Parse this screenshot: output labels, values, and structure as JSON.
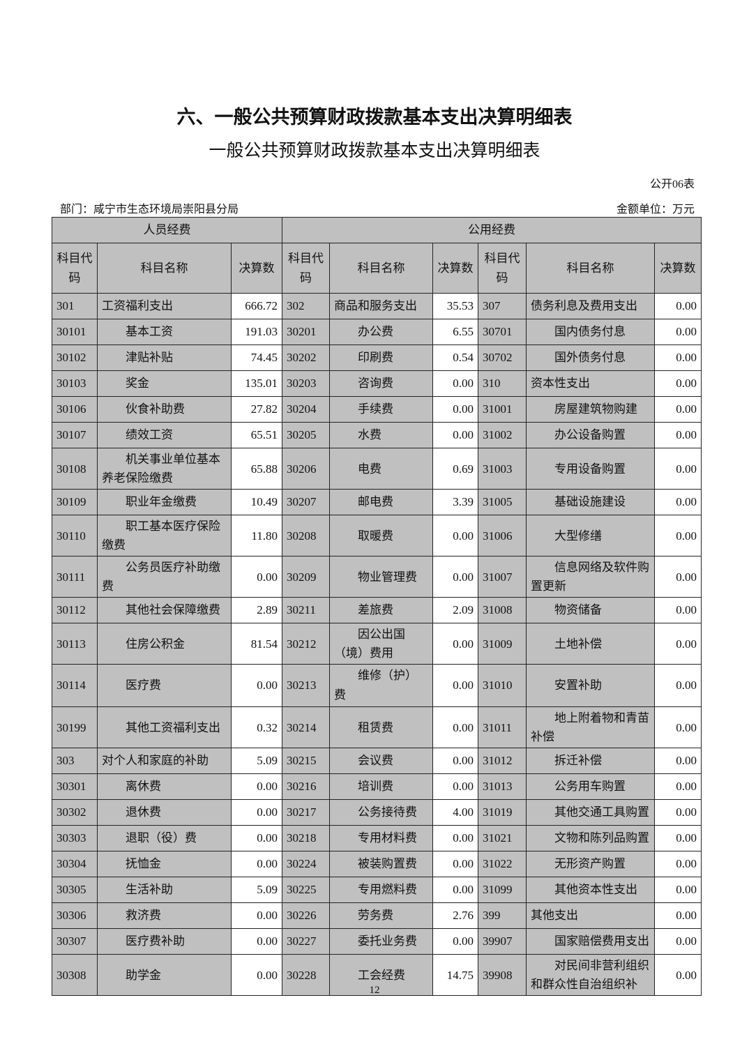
{
  "title": "六、一般公共预算财政拨款基本支出决算明细表",
  "subtitle": "一般公共预算财政拨款基本支出决算明细表",
  "table_no": "公开06表",
  "department": "部门：咸宁市生态环境局崇阳县分局",
  "unit": "金额单位：万元",
  "header": {
    "group1": "人员经费",
    "group2": "公用经费",
    "code": "科目代码",
    "name": "科目名称",
    "amount1": "决算数",
    "amount": "决算数"
  },
  "rows": [
    [
      "301",
      "工资福利支出",
      "666.72",
      "302",
      "商品和服务支出",
      "35.53",
      "307",
      "债务利息及费用支出",
      "0.00"
    ],
    [
      "30101",
      "基本工资",
      "191.03",
      "30201",
      "办公费",
      "6.55",
      "30701",
      "国内债务付息",
      "0.00"
    ],
    [
      "30102",
      "津贴补贴",
      "74.45",
      "30202",
      "印刷费",
      "0.54",
      "30702",
      "国外债务付息",
      "0.00"
    ],
    [
      "30103",
      "奖金",
      "135.01",
      "30203",
      "咨询费",
      "0.00",
      "310",
      "资本性支出",
      "0.00"
    ],
    [
      "30106",
      "伙食补助费",
      "27.82",
      "30204",
      "手续费",
      "0.00",
      "31001",
      "房屋建筑物购建",
      "0.00"
    ],
    [
      "30107",
      "绩效工资",
      "65.51",
      "30205",
      "水费",
      "0.00",
      "31002",
      "办公设备购置",
      "0.00"
    ],
    [
      "30108",
      "机关事业单位基本养老保险缴费",
      "65.88",
      "30206",
      "电费",
      "0.69",
      "31003",
      "专用设备购置",
      "0.00"
    ],
    [
      "30109",
      "职业年金缴费",
      "10.49",
      "30207",
      "邮电费",
      "3.39",
      "31005",
      "基础设施建设",
      "0.00"
    ],
    [
      "30110",
      "职工基本医疗保险缴费",
      "11.80",
      "30208",
      "取暖费",
      "0.00",
      "31006",
      "大型修缮",
      "0.00"
    ],
    [
      "30111",
      "公务员医疗补助缴费",
      "0.00",
      "30209",
      "物业管理费",
      "0.00",
      "31007",
      "信息网络及软件购置更新",
      "0.00"
    ],
    [
      "30112",
      "其他社会保障缴费",
      "2.89",
      "30211",
      "差旅费",
      "2.09",
      "31008",
      "物资储备",
      "0.00"
    ],
    [
      "30113",
      "住房公积金",
      "81.54",
      "30212",
      "因公出国（境）费用",
      "0.00",
      "31009",
      "土地补偿",
      "0.00"
    ],
    [
      "30114",
      "医疗费",
      "0.00",
      "30213",
      "维修（护）费",
      "0.00",
      "31010",
      "安置补助",
      "0.00"
    ],
    [
      "30199",
      "其他工资福利支出",
      "0.32",
      "30214",
      "租赁费",
      "0.00",
      "31011",
      "地上附着物和青苗补偿",
      "0.00"
    ],
    [
      "303",
      "对个人和家庭的补助",
      "5.09",
      "30215",
      "会议费",
      "0.00",
      "31012",
      "拆迁补偿",
      "0.00"
    ],
    [
      "30301",
      "离休费",
      "0.00",
      "30216",
      "培训费",
      "0.00",
      "31013",
      "公务用车购置",
      "0.00"
    ],
    [
      "30302",
      "退休费",
      "0.00",
      "30217",
      "公务接待费",
      "4.00",
      "31019",
      "其他交通工具购置",
      "0.00"
    ],
    [
      "30303",
      "退职（役）费",
      "0.00",
      "30218",
      "专用材料费",
      "0.00",
      "31021",
      "文物和陈列品购置",
      "0.00"
    ],
    [
      "30304",
      "抚恤金",
      "0.00",
      "30224",
      "被装购置费",
      "0.00",
      "31022",
      "无形资产购置",
      "0.00"
    ],
    [
      "30305",
      "生活补助",
      "5.09",
      "30225",
      "专用燃料费",
      "0.00",
      "31099",
      "其他资本性支出",
      "0.00"
    ],
    [
      "30306",
      "救济费",
      "0.00",
      "30226",
      "劳务费",
      "2.76",
      "399",
      "其他支出",
      "0.00"
    ],
    [
      "30307",
      "医疗费补助",
      "0.00",
      "30227",
      "委托业务费",
      "0.00",
      "39907",
      "国家赔偿费用支出",
      "0.00"
    ],
    [
      "30308",
      "助学金",
      "0.00",
      "30228",
      "工会经费",
      "14.75",
      "39908",
      "对民间非营利组织和群众性自治组织补",
      "0.00"
    ]
  ],
  "page_number": "12"
}
